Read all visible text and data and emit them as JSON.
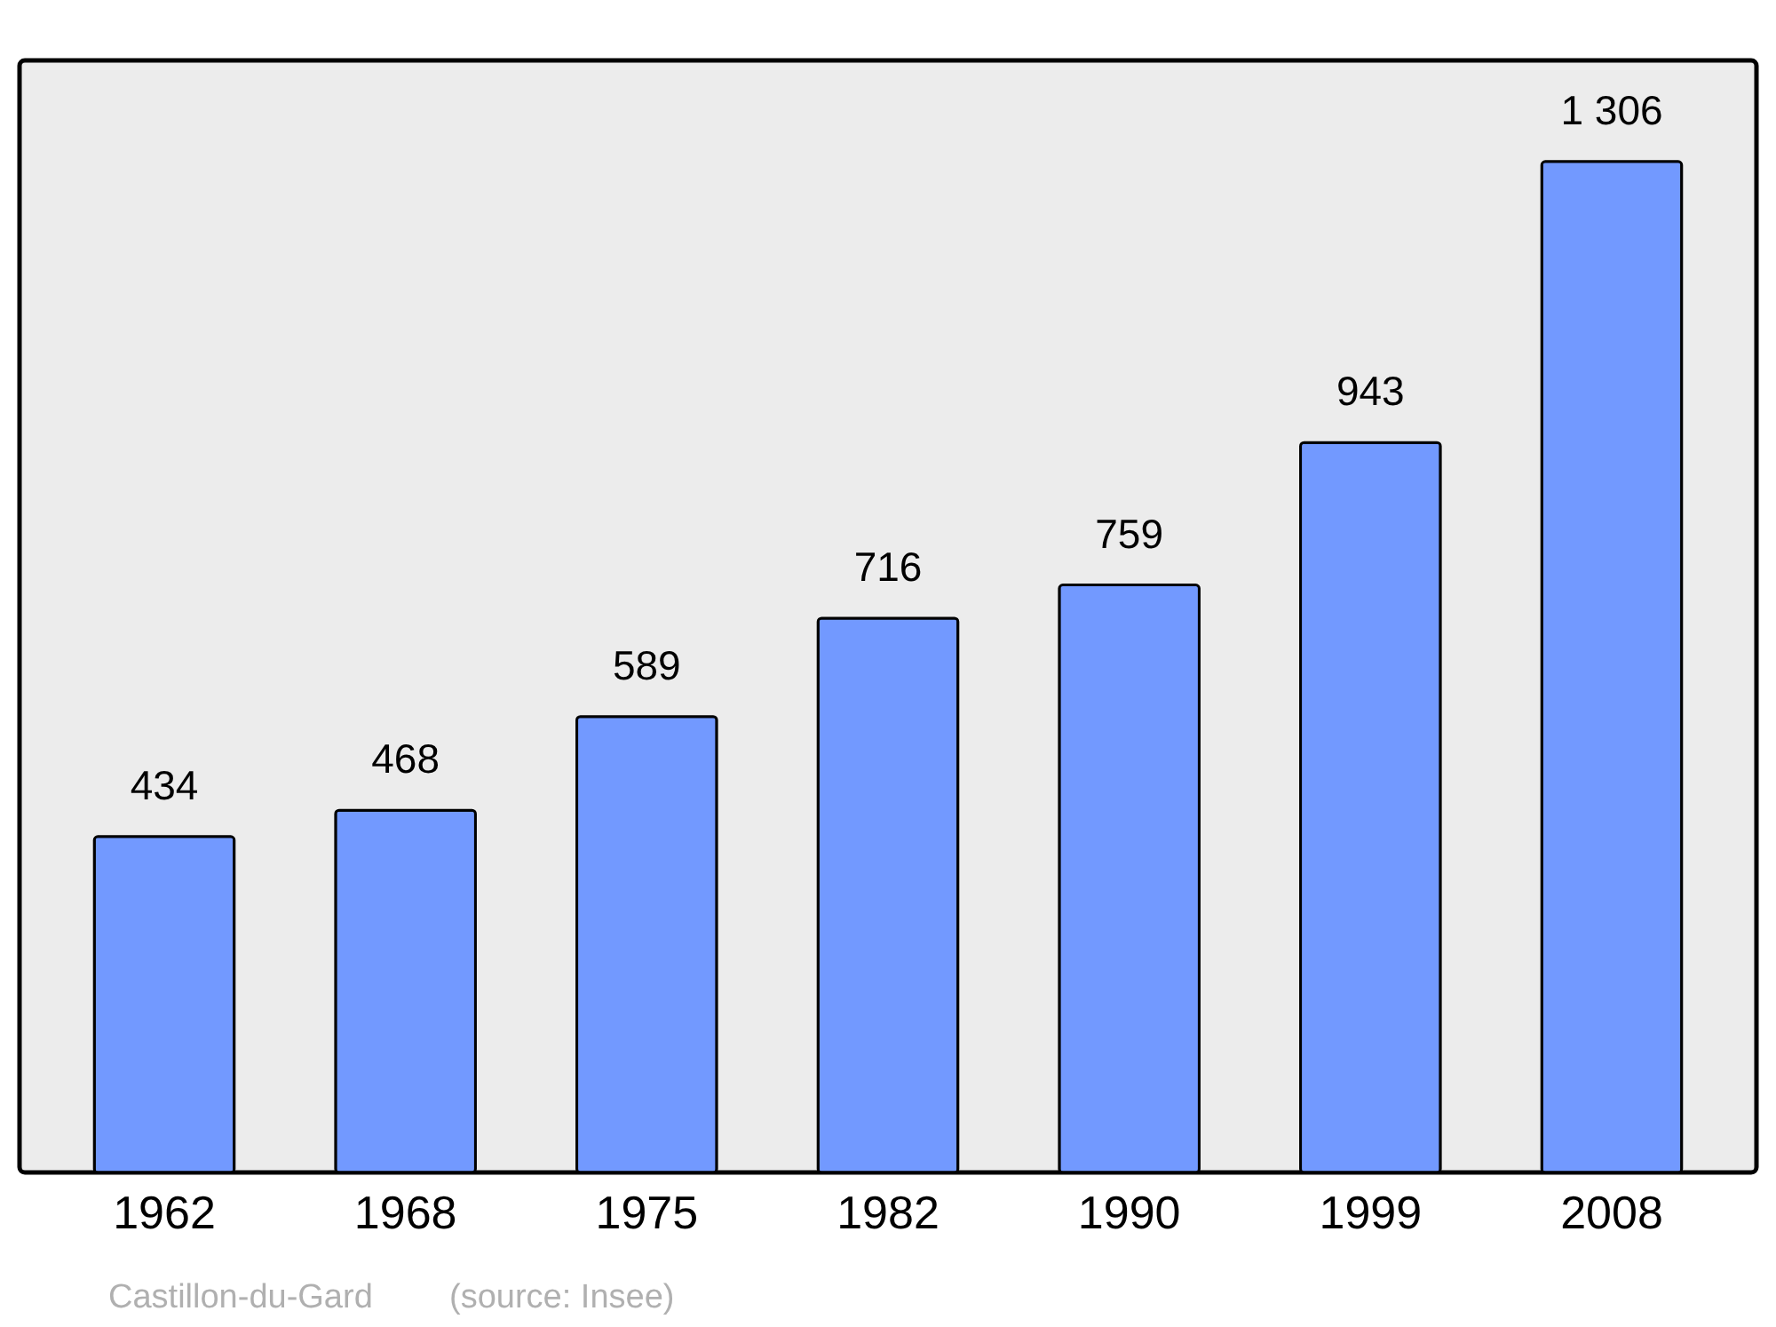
{
  "chart_data": {
    "type": "bar",
    "categories": [
      "1962",
      "1968",
      "1975",
      "1982",
      "1990",
      "1999",
      "2008"
    ],
    "values": [
      434,
      468,
      589,
      716,
      759,
      943,
      1306
    ],
    "value_labels": [
      "434",
      "468",
      "589",
      "716",
      "759",
      "943",
      "1 306"
    ],
    "color": "#7299ff",
    "grid": false,
    "annotations": [
      "Castillon-du-Gard",
      "(source: Insee)"
    ]
  }
}
